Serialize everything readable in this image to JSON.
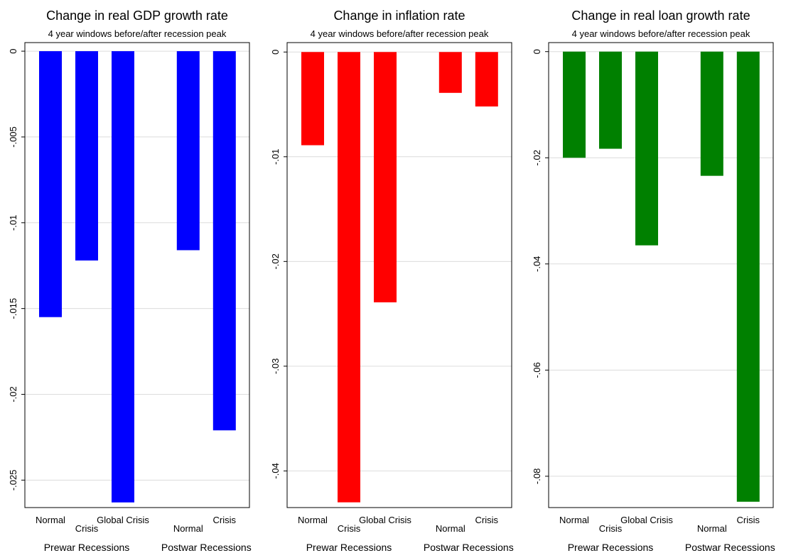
{
  "chart_data": [
    {
      "type": "bar",
      "title": "Change in real GDP growth rate",
      "subtitle": "4 year windows before/after recession peak",
      "color": "#0000ff",
      "ylim": [
        -0.0266,
        0.0005
      ],
      "yticks": [
        0,
        {
          "value": -0.005,
          "label": "-.005"
        },
        {
          "value": -0.01,
          "label": "-.01"
        },
        {
          "value": -0.015,
          "label": "-.015"
        },
        {
          "value": -0.02,
          "label": "-.02"
        },
        {
          "value": -0.025,
          "label": "-.025"
        }
      ],
      "grid": true,
      "groups": [
        {
          "name": "Prewar Recessions",
          "categories": [
            "Normal",
            "Crisis",
            "Global Crisis"
          ],
          "values": [
            -0.0155,
            -0.0122,
            -0.0263
          ]
        },
        {
          "name": "Postwar Recessions",
          "categories": [
            "Normal",
            "Crisis"
          ],
          "values": [
            -0.0116,
            -0.0221
          ]
        }
      ]
    },
    {
      "type": "bar",
      "title": "Change in inflation rate",
      "subtitle": "4 year windows before/after recession peak",
      "color": "#ff0000",
      "ylim": [
        -0.0435,
        0.0009
      ],
      "yticks": [
        0,
        {
          "value": -0.01,
          "label": "-.01"
        },
        {
          "value": -0.02,
          "label": "-.02"
        },
        {
          "value": -0.03,
          "label": "-.03"
        },
        {
          "value": -0.04,
          "label": "-.04"
        }
      ],
      "grid": true,
      "groups": [
        {
          "name": "Prewar Recessions",
          "categories": [
            "Normal",
            "Crisis",
            "Global Crisis"
          ],
          "values": [
            -0.0089,
            -0.043,
            -0.0239
          ]
        },
        {
          "name": "Postwar Recessions",
          "categories": [
            "Normal",
            "Crisis"
          ],
          "values": [
            -0.0039,
            -0.0052
          ]
        }
      ]
    },
    {
      "type": "bar",
      "title": "Change in real loan growth rate",
      "subtitle": "4 year windows before/after recession peak",
      "color": "#008000",
      "ylim": [
        -0.0859,
        0.0017
      ],
      "yticks": [
        0,
        {
          "value": -0.02,
          "label": "-.02"
        },
        {
          "value": -0.04,
          "label": "-.04"
        },
        {
          "value": -0.06,
          "label": "-.06"
        },
        {
          "value": -0.08,
          "label": "-.08"
        }
      ],
      "grid": true,
      "groups": [
        {
          "name": "Prewar Recessions",
          "categories": [
            "Normal",
            "Crisis",
            "Global Crisis"
          ],
          "values": [
            -0.02,
            -0.0183,
            -0.0365
          ]
        },
        {
          "name": "Postwar Recessions",
          "categories": [
            "Normal",
            "Crisis"
          ],
          "values": [
            -0.0234,
            -0.0848
          ]
        }
      ]
    }
  ]
}
